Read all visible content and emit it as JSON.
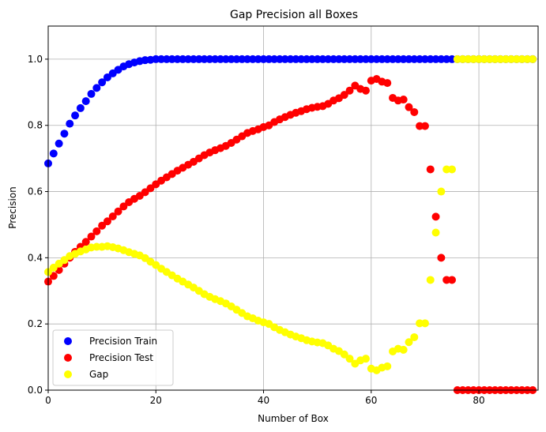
{
  "chart_data": {
    "type": "scatter",
    "title": "Gap Precision all Boxes",
    "xlabel": "Number of Box",
    "ylabel": "Precision",
    "xlim": [
      0,
      91
    ],
    "ylim": [
      0,
      1.1
    ],
    "xticks": [
      0,
      20,
      40,
      60,
      80
    ],
    "yticks": [
      0.0,
      0.2,
      0.4,
      0.6,
      0.8,
      1.0
    ],
    "xtick_labels": [
      "0",
      "20",
      "40",
      "60",
      "80"
    ],
    "ytick_labels": [
      "0.0",
      "0.2",
      "0.4",
      "0.6",
      "0.8",
      "1.0"
    ],
    "grid": true,
    "legend_position": "lower-left",
    "series": [
      {
        "name": "Precision Train",
        "color": "#0000ff",
        "x": [
          0,
          1,
          2,
          3,
          4,
          5,
          6,
          7,
          8,
          9,
          10,
          11,
          12,
          13,
          14,
          15,
          16,
          17,
          18,
          19,
          20,
          21,
          22,
          23,
          24,
          25,
          26,
          27,
          28,
          29,
          30,
          31,
          32,
          33,
          34,
          35,
          36,
          37,
          38,
          39,
          40,
          41,
          42,
          43,
          44,
          45,
          46,
          47,
          48,
          49,
          50,
          51,
          52,
          53,
          54,
          55,
          56,
          57,
          58,
          59,
          60,
          61,
          62,
          63,
          64,
          65,
          66,
          67,
          68,
          69,
          70,
          71,
          72,
          73,
          74,
          75,
          76,
          77,
          78,
          79,
          80,
          81,
          82,
          83,
          84,
          85,
          86,
          87,
          88,
          89,
          90
        ],
        "y": [
          0.685,
          0.715,
          0.745,
          0.775,
          0.805,
          0.83,
          0.852,
          0.873,
          0.895,
          0.913,
          0.93,
          0.945,
          0.957,
          0.968,
          0.978,
          0.985,
          0.99,
          0.994,
          0.997,
          0.998,
          1.0,
          1.0,
          1.0,
          1.0,
          1.0,
          1.0,
          1.0,
          1.0,
          1.0,
          1.0,
          1.0,
          1.0,
          1.0,
          1.0,
          1.0,
          1.0,
          1.0,
          1.0,
          1.0,
          1.0,
          1.0,
          1.0,
          1.0,
          1.0,
          1.0,
          1.0,
          1.0,
          1.0,
          1.0,
          1.0,
          1.0,
          1.0,
          1.0,
          1.0,
          1.0,
          1.0,
          1.0,
          1.0,
          1.0,
          1.0,
          1.0,
          1.0,
          1.0,
          1.0,
          1.0,
          1.0,
          1.0,
          1.0,
          1.0,
          1.0,
          1.0,
          1.0,
          1.0,
          1.0,
          1.0,
          1.0,
          1.0,
          1.0,
          1.0,
          1.0,
          1.0,
          1.0,
          1.0,
          1.0,
          1.0,
          1.0,
          1.0,
          1.0,
          1.0,
          1.0,
          1.0
        ]
      },
      {
        "name": "Precision Test",
        "color": "#ff0000",
        "x": [
          0,
          1,
          2,
          3,
          4,
          5,
          6,
          7,
          8,
          9,
          10,
          11,
          12,
          13,
          14,
          15,
          16,
          17,
          18,
          19,
          20,
          21,
          22,
          23,
          24,
          25,
          26,
          27,
          28,
          29,
          30,
          31,
          32,
          33,
          34,
          35,
          36,
          37,
          38,
          39,
          40,
          41,
          42,
          43,
          44,
          45,
          46,
          47,
          48,
          49,
          50,
          51,
          52,
          53,
          54,
          55,
          56,
          57,
          58,
          59,
          60,
          61,
          62,
          63,
          64,
          65,
          66,
          67,
          68,
          69,
          70,
          71,
          72,
          73,
          74,
          75,
          76,
          77,
          78,
          79,
          80,
          81,
          82,
          83,
          84,
          85,
          86,
          87,
          88,
          89,
          90
        ],
        "y": [
          0.328,
          0.345,
          0.363,
          0.382,
          0.4,
          0.418,
          0.433,
          0.448,
          0.464,
          0.48,
          0.497,
          0.51,
          0.525,
          0.54,
          0.555,
          0.568,
          0.578,
          0.587,
          0.598,
          0.61,
          0.622,
          0.633,
          0.643,
          0.653,
          0.663,
          0.672,
          0.681,
          0.69,
          0.7,
          0.71,
          0.718,
          0.725,
          0.731,
          0.738,
          0.747,
          0.757,
          0.767,
          0.777,
          0.783,
          0.788,
          0.795,
          0.8,
          0.81,
          0.818,
          0.825,
          0.832,
          0.838,
          0.843,
          0.849,
          0.853,
          0.856,
          0.858,
          0.865,
          0.875,
          0.882,
          0.892,
          0.905,
          0.92,
          0.91,
          0.905,
          0.935,
          0.94,
          0.932,
          0.928,
          0.883,
          0.875,
          0.878,
          0.855,
          0.84,
          0.798,
          0.798,
          0.667,
          0.524,
          0.4,
          0.333,
          0.333,
          0.0,
          0.0,
          0.0,
          0.0,
          0.0,
          0.0,
          0.0,
          0.0,
          0.0,
          0.0,
          0.0,
          0.0,
          0.0,
          0.0,
          0.0
        ]
      },
      {
        "name": "Gap",
        "color": "#ffff00",
        "x": [
          0,
          1,
          2,
          3,
          4,
          5,
          6,
          7,
          8,
          9,
          10,
          11,
          12,
          13,
          14,
          15,
          16,
          17,
          18,
          19,
          20,
          21,
          22,
          23,
          24,
          25,
          26,
          27,
          28,
          29,
          30,
          31,
          32,
          33,
          34,
          35,
          36,
          37,
          38,
          39,
          40,
          41,
          42,
          43,
          44,
          45,
          46,
          47,
          48,
          49,
          50,
          51,
          52,
          53,
          54,
          55,
          56,
          57,
          58,
          59,
          60,
          61,
          62,
          63,
          64,
          65,
          66,
          67,
          68,
          69,
          70,
          71,
          72,
          73,
          74,
          75,
          76,
          77,
          78,
          79,
          80,
          81,
          82,
          83,
          84,
          85,
          86,
          87,
          88,
          89,
          90
        ],
        "y": [
          0.357,
          0.37,
          0.382,
          0.393,
          0.405,
          0.412,
          0.419,
          0.425,
          0.431,
          0.433,
          0.433,
          0.435,
          0.432,
          0.428,
          0.423,
          0.417,
          0.412,
          0.407,
          0.399,
          0.388,
          0.378,
          0.367,
          0.357,
          0.347,
          0.337,
          0.328,
          0.319,
          0.31,
          0.3,
          0.29,
          0.282,
          0.275,
          0.269,
          0.262,
          0.253,
          0.243,
          0.233,
          0.223,
          0.217,
          0.21,
          0.205,
          0.2,
          0.19,
          0.182,
          0.175,
          0.168,
          0.162,
          0.157,
          0.151,
          0.147,
          0.144,
          0.142,
          0.135,
          0.125,
          0.118,
          0.108,
          0.095,
          0.08,
          0.09,
          0.095,
          0.065,
          0.06,
          0.068,
          0.072,
          0.117,
          0.125,
          0.122,
          0.145,
          0.16,
          0.202,
          0.202,
          0.333,
          0.476,
          0.6,
          0.667,
          0.667,
          1.0,
          1.0,
          1.0,
          1.0,
          1.0,
          1.0,
          1.0,
          1.0,
          1.0,
          1.0,
          1.0,
          1.0,
          1.0,
          1.0,
          1.0
        ]
      }
    ]
  }
}
